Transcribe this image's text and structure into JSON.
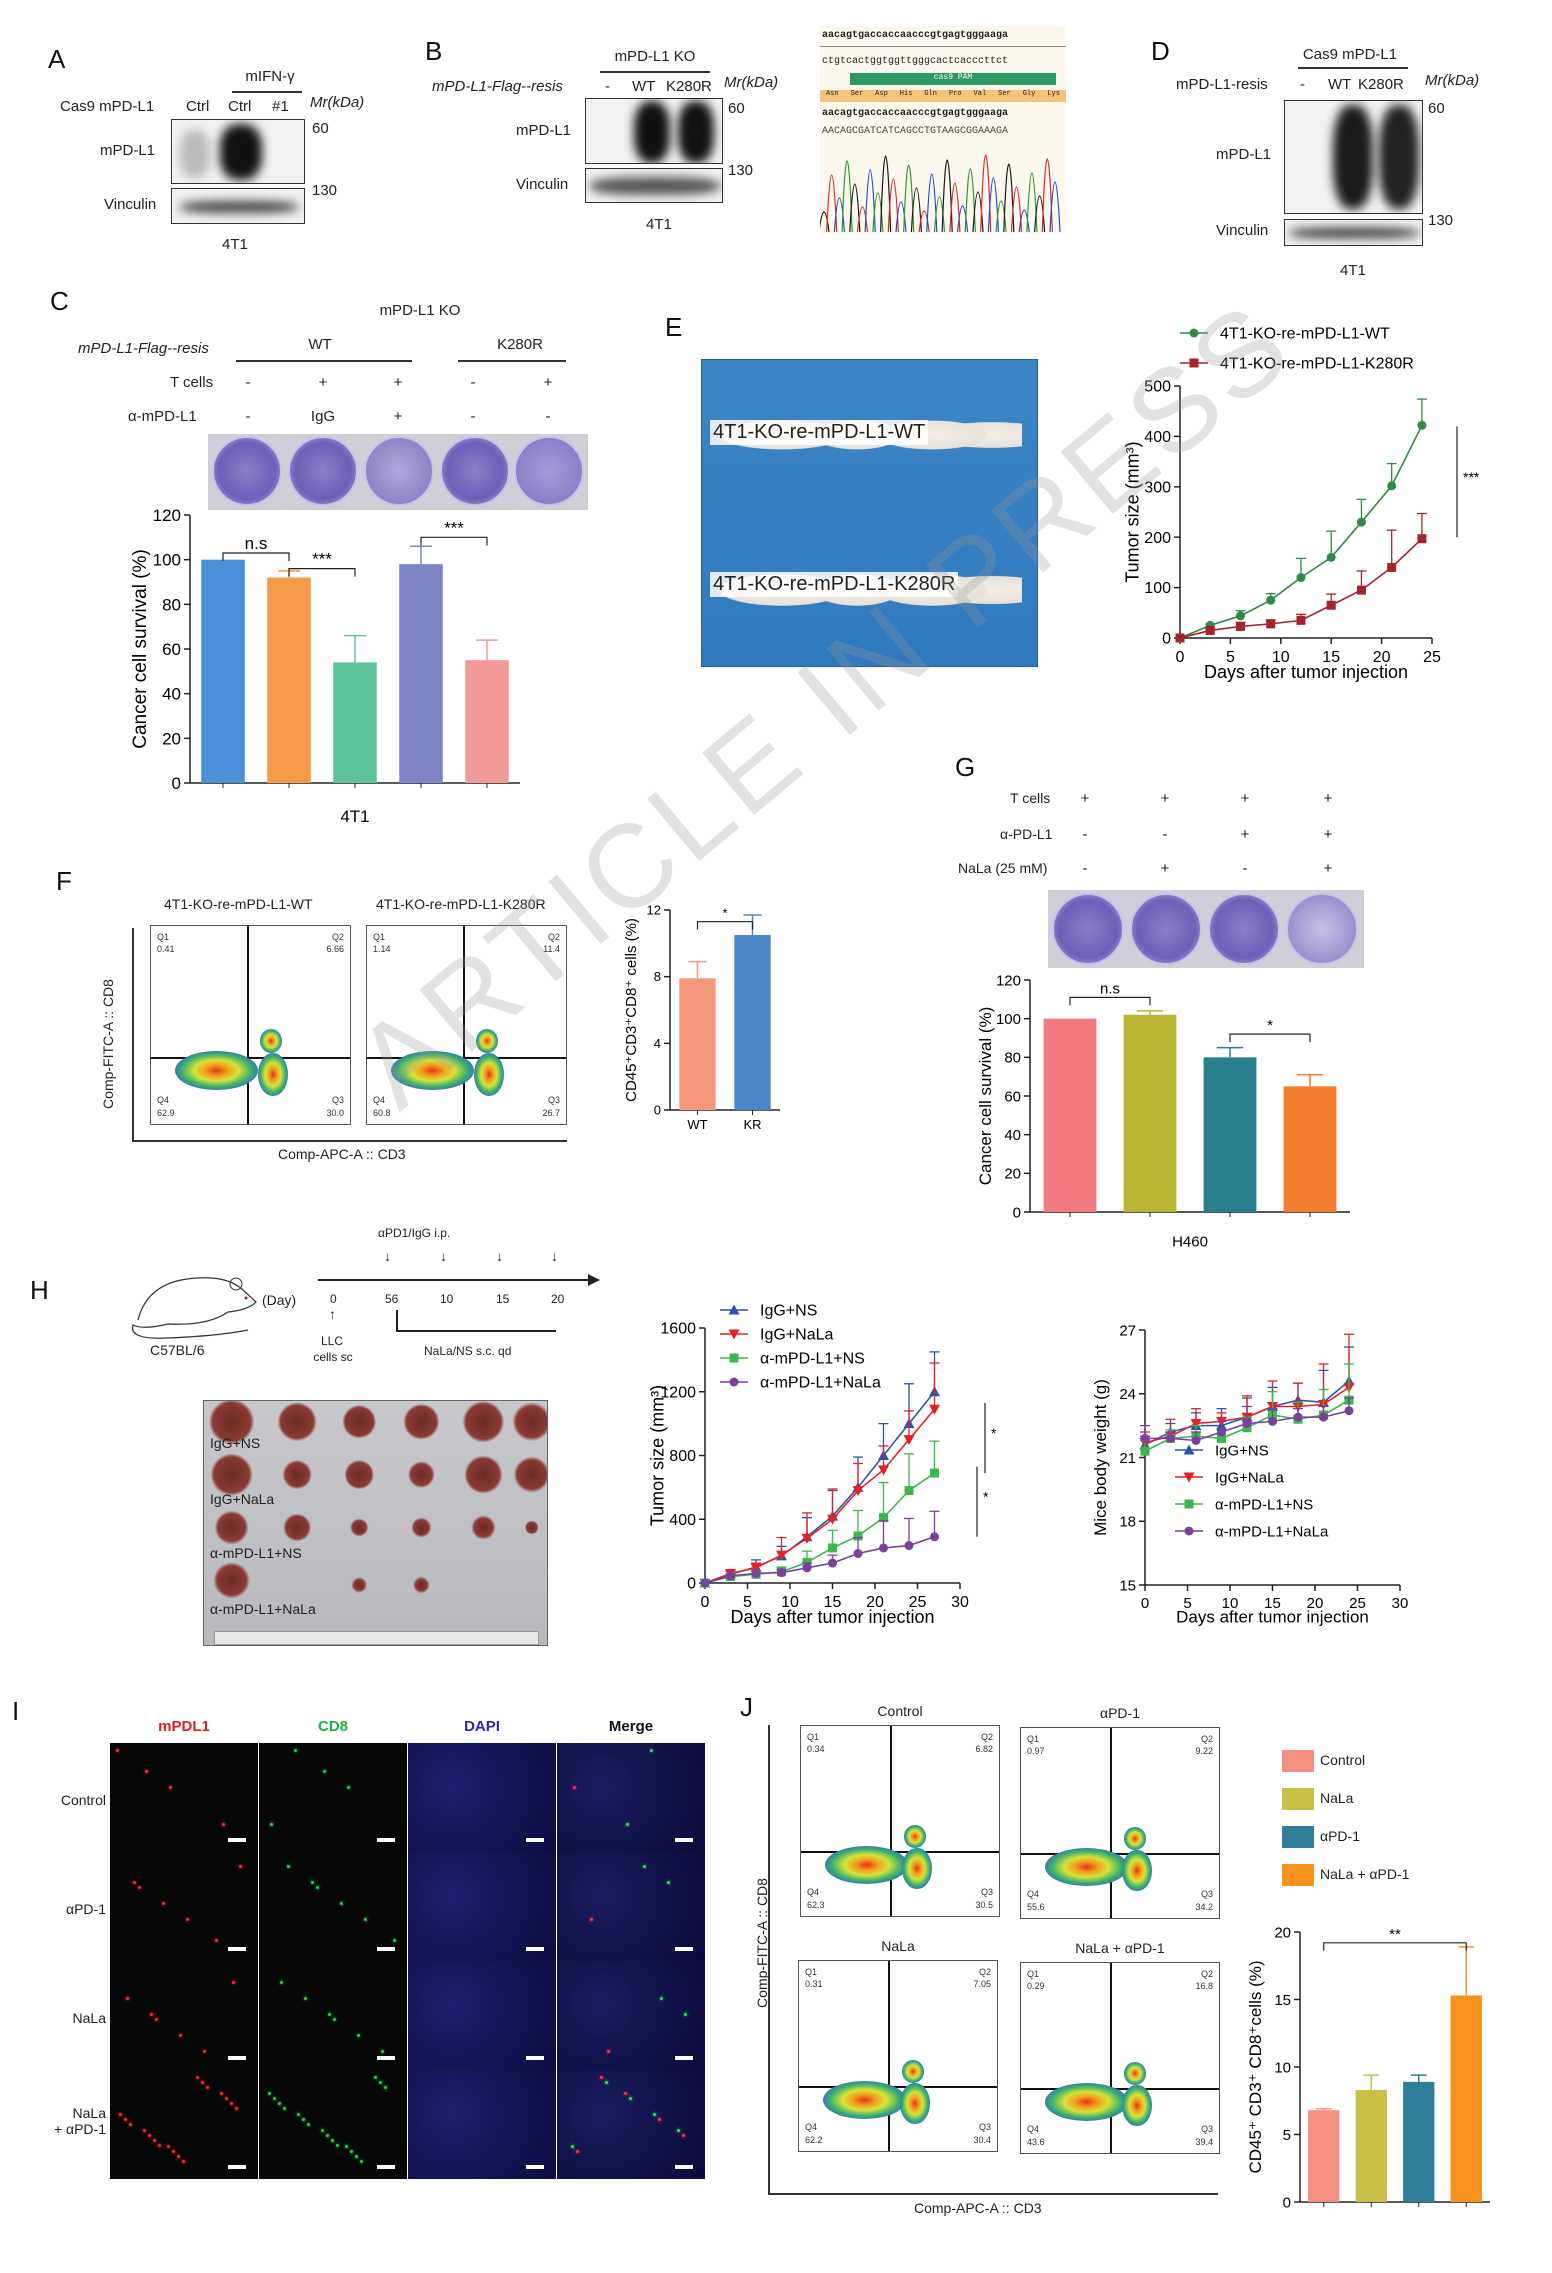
{
  "panels": {
    "A": "A",
    "B": "B",
    "C": "C",
    "D": "D",
    "E": "E",
    "F": "F",
    "G": "G",
    "H": "H",
    "I": "I",
    "J": "J"
  },
  "panelA": {
    "treatment": "mIFN-γ",
    "row_label": "Cas9 mPD-L1",
    "lanes": [
      "Ctrl",
      "Ctrl",
      "#1"
    ],
    "mr": "Mr(kDa)",
    "blot1": "mPD-L1",
    "blot2": "Vinculin",
    "m1": "60",
    "m2": "130",
    "cell": "4T1"
  },
  "panelB": {
    "header": "mPD-L1 KO",
    "row_label": "mPD-L1-Flag--resis",
    "lanes": [
      "-",
      "WT",
      "K280R"
    ],
    "mr": "Mr(kDa)",
    "blot1": "mPD-L1",
    "blot2": "Vinculin",
    "m1": "60",
    "m2": "130",
    "cell": "4T1",
    "seq_ref": "aacagtgaccaccaacccgtgagtgggaaga",
    "seq_comp": "ctgtcactggtggttgggcactcacccttct",
    "pam": "cas9 PAM",
    "aa": [
      "Asn",
      "Ser",
      "Asp",
      "His",
      "Gln",
      "Pro",
      "Val",
      "Ser",
      "Gly",
      "Lys"
    ],
    "seq_ref2": "aacagtgaccaccaacccgtgagtgggaaga",
    "seq_mut": "AACAGCGATCATCAGCCTGTAAGCGGAAAGA"
  },
  "panelD": {
    "header": "Cas9 mPD-L1",
    "row_label": "mPD-L1-resis",
    "lanes": [
      "-",
      "WT",
      "K280R"
    ],
    "mr": "Mr(kDa)",
    "blot1": "mPD-L1",
    "blot2": "Vinculin",
    "m1": "60",
    "m2": "130",
    "cell": "4T1"
  },
  "panelC": {
    "header": "mPD-L1 KO",
    "rows": [
      {
        "label": "mPD-L1-Flag--resis",
        "groups": [
          "WT",
          "K280R"
        ]
      },
      {
        "label": "T cells",
        "values": [
          "-",
          "+",
          "+",
          "-",
          "+"
        ]
      },
      {
        "label": "α-mPD-L1",
        "values": [
          "-",
          "IgG",
          "+",
          "-",
          "-"
        ]
      }
    ]
  },
  "panelE": {
    "photo_label1": "4T1-KO-re-mPD-L1-WT",
    "photo_label2": "4T1-KO-re-mPD-L1-K280R"
  },
  "panelF": {
    "plots": [
      {
        "title": "4T1-KO-re-mPD-L1-WT",
        "q": [
          "Q1",
          "Q2",
          "Q3",
          "Q4"
        ],
        "v": [
          "0.41",
          "6.66",
          "30.0",
          "62.9"
        ]
      },
      {
        "title": "4T1-KO-re-mPD-L1-K280R",
        "q": [
          "Q1",
          "Q2",
          "Q3",
          "Q4"
        ],
        "v": [
          "1.14",
          "11.4",
          "26.7",
          "60.8"
        ]
      }
    ],
    "ylabel": "Comp-FITC-A :: CD8",
    "xlabel": "Comp-APC-A :: CD3"
  },
  "panelG": {
    "rows": [
      {
        "label": "T cells",
        "values": [
          "+",
          "+",
          "+",
          "+"
        ]
      },
      {
        "label": "α-PD-L1",
        "values": [
          "-",
          "-",
          "+",
          "+"
        ]
      },
      {
        "label": "NaLa (25 mM)",
        "values": [
          "-",
          "+",
          "-",
          "+"
        ]
      }
    ]
  },
  "panelH": {
    "day": "(Day)",
    "days": [
      "0",
      "56",
      "10",
      "15",
      "20"
    ],
    "top": "αPD1/IgG i.p.",
    "cells": "LLC",
    "cells2": "cells sc",
    "nala": "NaLa/NS s.c. qd",
    "mouse": "C57BL/6",
    "photo_rows": [
      "IgG+NS",
      "IgG+NaLa",
      "α-mPD-L1+NS",
      "α-mPD-L1+NaLa"
    ]
  },
  "panelI": {
    "cols": [
      "mPDL1",
      "CD8",
      "DAPI",
      "Merge"
    ],
    "col_colors": [
      "#e02020",
      "#1fb040",
      "#2a2ab0",
      "#111111"
    ],
    "rows": [
      "Control",
      "αPD-1",
      "NaLa",
      "NaLa\n+ αPD-1"
    ]
  },
  "panelJ": {
    "plots": [
      {
        "title": "Control",
        "v": [
          "0.34",
          "6.82",
          "30.5",
          "62.3"
        ]
      },
      {
        "title": "αPD-1",
        "v": [
          "0.97",
          "9.22",
          "34.2",
          "55.6"
        ]
      },
      {
        "title": "NaLa",
        "v": [
          "0.31",
          "7.05",
          "30.4",
          "62.2"
        ]
      },
      {
        "title": "NaLa + αPD-1",
        "v": [
          "0.29",
          "16.8",
          "39.4",
          "43.6"
        ]
      }
    ],
    "q": [
      "Q1",
      "Q2",
      "Q3",
      "Q4"
    ],
    "ylabel": "Comp-FITC-A :: CD8",
    "xlabel": "Comp-APC-A :: CD3",
    "legend": [
      "Control",
      "NaLa",
      "αPD-1",
      "NaLa + αPD-1"
    ]
  },
  "watermark": "ARTICLE IN PRESS",
  "chart_data": [
    {
      "id": "C",
      "type": "bar",
      "categories": [
        "",
        "",
        "",
        "",
        ""
      ],
      "values": [
        100,
        92,
        54,
        98,
        55
      ],
      "errors": [
        0,
        3,
        12,
        8,
        9
      ],
      "colors": [
        "#4a90d9",
        "#f59a46",
        "#5ec59c",
        "#7d84c4",
        "#f29a9a"
      ],
      "ylim": [
        0,
        120
      ],
      "yticks": [
        0,
        20,
        40,
        60,
        80,
        100,
        120
      ],
      "ylabel": "Cancer cell survival (%)",
      "xlabel": "4T1",
      "significance": [
        {
          "from": 0,
          "to": 1,
          "label": "n.s",
          "at": 103
        },
        {
          "from": 1,
          "to": 2,
          "label": "***",
          "at": 96
        },
        {
          "from": 3,
          "to": 4,
          "label": "***",
          "at": 110
        }
      ]
    },
    {
      "id": "E",
      "type": "line",
      "x": [
        0,
        3,
        6,
        9,
        12,
        15,
        18,
        21,
        24
      ],
      "xlim": [
        0,
        25
      ],
      "xticks": [
        0,
        5,
        10,
        15,
        20,
        25
      ],
      "ylim": [
        0,
        500
      ],
      "yticks": [
        0,
        100,
        200,
        300,
        400,
        500
      ],
      "xlabel": "Days after tumor injection",
      "ylabel": "Tumor size (mm³)",
      "series": [
        {
          "name": "4T1-KO-re-mPD-L1-WT",
          "color": "#2e8b47",
          "marker": "circle",
          "values": [
            0,
            25,
            44,
            75,
            120,
            160,
            230,
            302,
            422
          ],
          "errors": [
            0,
            3,
            10,
            13,
            38,
            52,
            45,
            44,
            52
          ]
        },
        {
          "name": "4T1-KO-re-mPD-L1-K280R",
          "color": "#a3252b",
          "marker": "square",
          "values": [
            0,
            15,
            23,
            28,
            35,
            65,
            95,
            140,
            197
          ],
          "errors": [
            0,
            3,
            8,
            8,
            12,
            22,
            38,
            74,
            50
          ]
        }
      ],
      "significance": [
        {
          "label": "***",
          "range": [
            200,
            420
          ]
        }
      ]
    },
    {
      "id": "F",
      "type": "bar",
      "categories": [
        "WT",
        "KR"
      ],
      "values": [
        7.9,
        10.5
      ],
      "errors": [
        1.0,
        1.2
      ],
      "colors": [
        "#f5977a",
        "#4a86c8"
      ],
      "ylim": [
        0,
        12
      ],
      "yticks": [
        0,
        4,
        8,
        12
      ],
      "ylabel": "CD45⁺CD3⁺CD8⁺ cells (%)",
      "xlabel": "",
      "significance": [
        {
          "from": 0,
          "to": 1,
          "label": "*",
          "at": 11.3
        }
      ]
    },
    {
      "id": "G",
      "type": "bar",
      "categories": [
        "",
        "",
        "",
        ""
      ],
      "values": [
        100,
        102,
        80,
        65
      ],
      "errors": [
        0,
        2,
        5,
        6
      ],
      "colors": [
        "#f07a7f",
        "#b8b632",
        "#277f8e",
        "#f37f2e"
      ],
      "ylim": [
        0,
        120
      ],
      "yticks": [
        0,
        20,
        40,
        60,
        80,
        100,
        120
      ],
      "ylabel": "Cancer cell survival (%)",
      "xlabel": "H460",
      "significance": [
        {
          "from": 0,
          "to": 1,
          "label": "n.s",
          "at": 111
        },
        {
          "from": 2,
          "to": 3,
          "label": "*",
          "at": 92
        }
      ]
    },
    {
      "id": "H1",
      "type": "line",
      "x": [
        0,
        3,
        6,
        9,
        12,
        15,
        18,
        21,
        24,
        27
      ],
      "xlim": [
        0,
        30
      ],
      "xticks": [
        0,
        5,
        10,
        15,
        20,
        25,
        30
      ],
      "ylim": [
        0,
        1600
      ],
      "yticks": [
        0,
        400,
        800,
        1200,
        1600
      ],
      "xlabel": "Days after tumor injection",
      "ylabel": "Tumor size (mm³)",
      "series": [
        {
          "name": "IgG+NS",
          "color": "#2755b0",
          "marker": "triangle",
          "values": [
            0,
            55,
            100,
            170,
            290,
            420,
            600,
            800,
            1000,
            1200
          ],
          "errors": [
            0,
            20,
            45,
            60,
            120,
            160,
            190,
            200,
            250,
            250
          ]
        },
        {
          "name": "IgG+NaLa",
          "color": "#e52222",
          "marker": "triangle-down",
          "values": [
            0,
            60,
            95,
            175,
            280,
            400,
            580,
            710,
            900,
            1090
          ],
          "errors": [
            0,
            15,
            30,
            110,
            160,
            190,
            170,
            150,
            180,
            290
          ]
        },
        {
          "name": "α-mPD-L1+NS",
          "color": "#3cb84a",
          "marker": "square",
          "values": [
            0,
            40,
            55,
            70,
            130,
            220,
            295,
            410,
            580,
            690
          ],
          "errors": [
            0,
            10,
            20,
            30,
            70,
            110,
            160,
            220,
            230,
            200
          ]
        },
        {
          "name": "α-mPD-L1+NaLa",
          "color": "#7b3fa0",
          "marker": "circle",
          "values": [
            0,
            45,
            60,
            65,
            95,
            125,
            185,
            220,
            235,
            290
          ],
          "errors": [
            0,
            10,
            15,
            20,
            30,
            50,
            100,
            170,
            170,
            160
          ]
        }
      ],
      "significance": [
        {
          "label": "*",
          "range": [
            690,
            1130
          ]
        },
        {
          "label": "*",
          "range": [
            290,
            730
          ]
        }
      ]
    },
    {
      "id": "H2",
      "type": "line",
      "x": [
        0,
        3,
        6,
        9,
        12,
        15,
        18,
        21,
        24
      ],
      "xlim": [
        0,
        30
      ],
      "xticks": [
        0,
        5,
        10,
        15,
        20,
        25,
        30
      ],
      "ylim": [
        15,
        27
      ],
      "yticks": [
        15,
        18,
        21,
        24,
        27
      ],
      "xlabel": "Days after tumor injection",
      "ylabel": "Mice body weight (g)",
      "series": [
        {
          "name": "IgG+NS",
          "color": "#2755b0",
          "marker": "triangle",
          "values": [
            21.6,
            22.2,
            22.5,
            22.5,
            22.9,
            23.4,
            23.7,
            23.6,
            24.6
          ],
          "errors": [
            0.4,
            0.4,
            0.6,
            0.8,
            0.9,
            0.9,
            0.8,
            1.5,
            1.6
          ]
        },
        {
          "name": "IgG+NaLa",
          "color": "#e52222",
          "marker": "triangle-down",
          "values": [
            21.7,
            22.0,
            22.6,
            22.7,
            22.9,
            23.4,
            23.4,
            23.5,
            24.3
          ],
          "errors": [
            0.5,
            0.8,
            0.7,
            0.4,
            1.0,
            1.2,
            1.1,
            1.9,
            2.5
          ]
        },
        {
          "name": "α-mPD-L1+NS",
          "color": "#3cb84a",
          "marker": "square",
          "values": [
            21.3,
            21.9,
            22.0,
            21.9,
            22.4,
            23.0,
            22.8,
            23.0,
            23.7
          ],
          "errors": [
            0.5,
            0.4,
            0.5,
            0.4,
            0.5,
            1.1,
            0.8,
            1.2,
            1.7
          ]
        },
        {
          "name": "α-mPD-L1+NaLa",
          "color": "#7b3fa0",
          "marker": "circle",
          "values": [
            21.9,
            21.9,
            21.8,
            22.2,
            22.6,
            22.7,
            22.9,
            22.9,
            23.2
          ],
          "errors": [
            0.6,
            0.3,
            0.4,
            0.5,
            0.8,
            0.6,
            0.4,
            0.5,
            0.6
          ]
        }
      ],
      "legend": "bottom-right"
    },
    {
      "id": "J",
      "type": "bar",
      "categories": [
        "",
        "",
        "",
        ""
      ],
      "values": [
        6.8,
        8.3,
        8.9,
        15.3
      ],
      "errors": [
        0.1,
        1.1,
        0.5,
        3.6
      ],
      "colors": [
        "#f59080",
        "#c8c048",
        "#2f7f9a",
        "#f7921e"
      ],
      "ylim": [
        0,
        20
      ],
      "yticks": [
        0,
        5,
        10,
        15,
        20
      ],
      "ylabel": "CD45⁺ CD3⁺ CD8⁺cells (%)",
      "xlabel": "",
      "significance": [
        {
          "from": 0,
          "to": 3,
          "label": "**",
          "at": 19.2
        }
      ]
    }
  ]
}
